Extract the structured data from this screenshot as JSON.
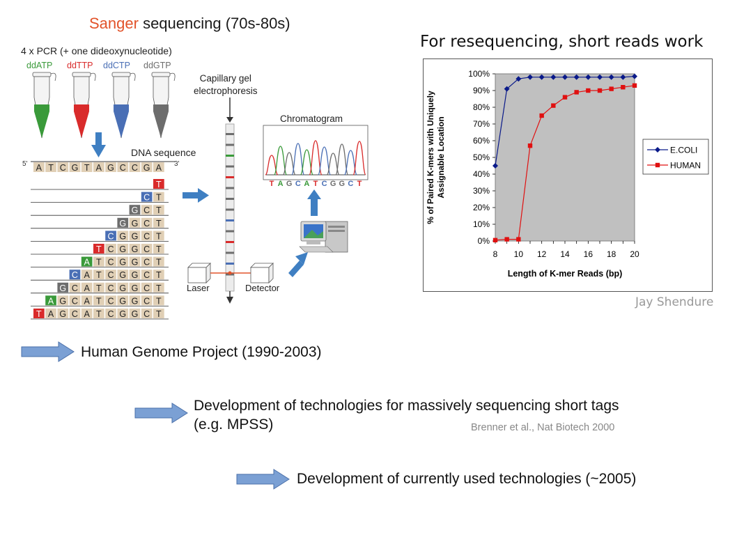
{
  "title": {
    "highlight": "Sanger",
    "rest": " sequencing (70s-80s)"
  },
  "pcr_label": "4 x PCR (+ one dideoxynucleotide)",
  "tubes": [
    {
      "label": "ddATP",
      "color": "#3a9a3a"
    },
    {
      "label": "ddTTP",
      "color": "#d92b2b"
    },
    {
      "label": "ddCTP",
      "color": "#4a6fb5"
    },
    {
      "label": "ddGTP",
      "color": "#6d6d6d"
    }
  ],
  "dna_title": "DNA sequence",
  "five_prime": "5'",
  "three_prime": "3'",
  "dna_sequence": [
    "A",
    "T",
    "C",
    "G",
    "T",
    "A",
    "G",
    "C",
    "C",
    "G",
    "A"
  ],
  "fragments_complement": [
    "T",
    "A",
    "G",
    "C",
    "A",
    "T",
    "C",
    "G",
    "G",
    "C",
    "T"
  ],
  "base_colors": {
    "A": "#3a9a3a",
    "T": "#d92b2b",
    "C": "#4a6fb5",
    "G": "#6d6d6d"
  },
  "capillary_title_1": "Capillary gel",
  "capillary_title_2": "electrophoresis",
  "chromatogram_title": "Chromatogram",
  "chromatogram_bases": [
    "T",
    "A",
    "G",
    "C",
    "A",
    "T",
    "C",
    "G",
    "G",
    "C",
    "T"
  ],
  "laser_label": "Laser",
  "detector_label": "Detector",
  "chart_title": "For resequencing, short reads work",
  "credit": "Jay Shendure",
  "bullets": {
    "b1": "Human Genome Project (1990-2003)",
    "b2": "Development of technologies for massively sequencing short tags (e.g. MPSS)",
    "b3": "Development of currently used technologies (~2005)"
  },
  "citation": "Brenner et al., Nat Biotech 2000",
  "chart_data": {
    "type": "line",
    "title": "",
    "xlabel": "Length of K-mer Reads (bp)",
    "ylabel": "% of Paired K-mers with Uniquely Assignable Location",
    "ylabel_line1": "% of Paired K-mers with Uniquely",
    "ylabel_line2": "Assignable Location",
    "x": [
      8,
      9,
      10,
      11,
      12,
      13,
      14,
      15,
      16,
      17,
      18,
      19,
      20
    ],
    "xticks": [
      8,
      10,
      12,
      14,
      16,
      18,
      20
    ],
    "yticks": [
      "0%",
      "10%",
      "20%",
      "30%",
      "40%",
      "50%",
      "60%",
      "70%",
      "80%",
      "90%",
      "100%"
    ],
    "xlim": [
      8,
      20
    ],
    "ylim": [
      0,
      100
    ],
    "legend_position": "right",
    "grid": false,
    "series": [
      {
        "name": "E.COLI",
        "color": "#0a1a8a",
        "marker": "diamond",
        "values": [
          45,
          91,
          97,
          98,
          98,
          98,
          98,
          98,
          98,
          98,
          98,
          98,
          98.5
        ]
      },
      {
        "name": "HUMAN",
        "color": "#e01010",
        "marker": "square",
        "values": [
          0.5,
          1,
          1,
          57,
          75,
          81,
          86,
          89,
          90,
          90,
          91,
          92,
          93
        ]
      }
    ]
  }
}
